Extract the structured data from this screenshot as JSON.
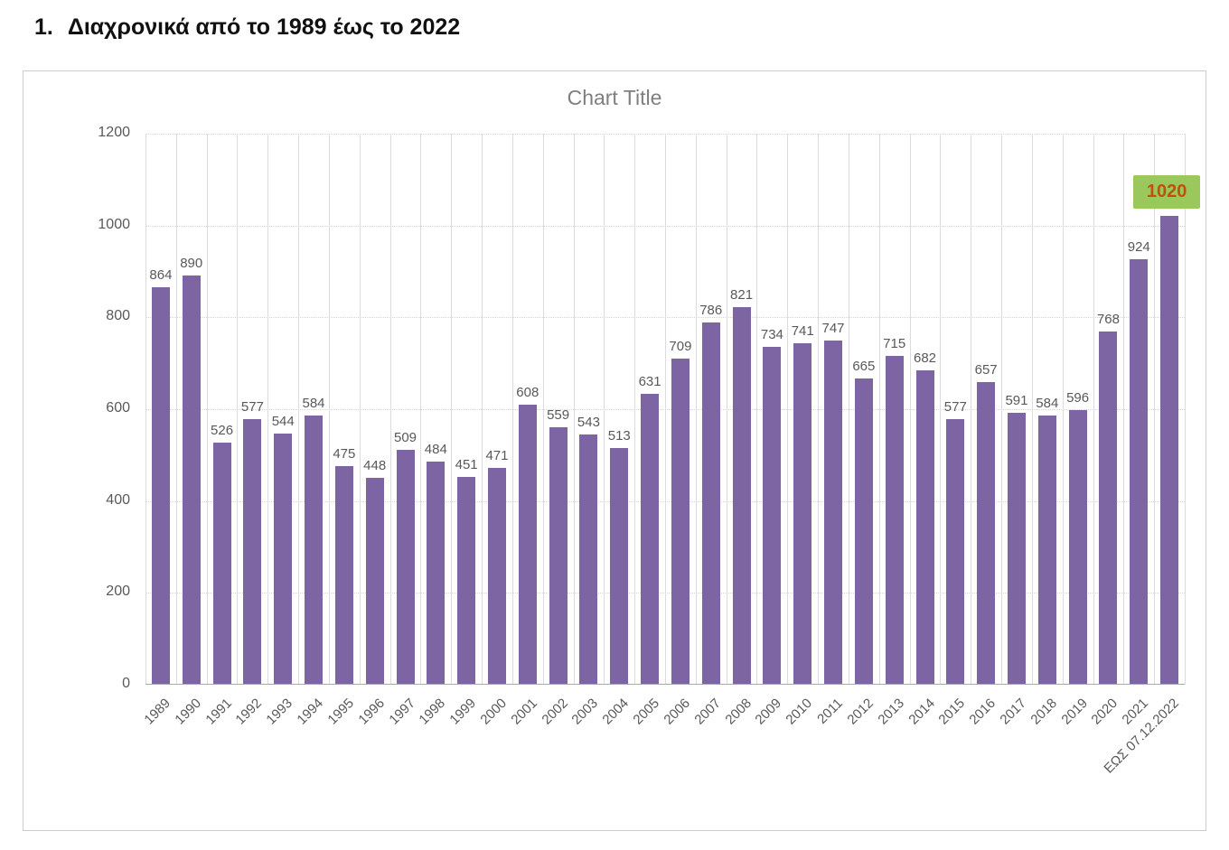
{
  "page": {
    "heading_number": "1.",
    "heading_text": "Διαχρονικά από το 1989 έως το 2022"
  },
  "chart": {
    "title": "Chart Title",
    "colors": {
      "bar": "#7d64a2",
      "grid_h": "#d4d4d4",
      "grid_v": "#dcdcdc",
      "axis": "#a9a9a9",
      "tick_label": "#595959",
      "value_label": "#595959",
      "title": "#7f7f7f",
      "figure_border": "#cccccc",
      "highlight_bg": "#9bc85c",
      "highlight_text": "#c1510a"
    }
  },
  "chart_data": {
    "type": "bar",
    "title": "Chart Title",
    "categories": [
      "1989",
      "1990",
      "1991",
      "1992",
      "1993",
      "1994",
      "1995",
      "1996",
      "1997",
      "1998",
      "1999",
      "2000",
      "2001",
      "2002",
      "2003",
      "2004",
      "2005",
      "2006",
      "2007",
      "2008",
      "2009",
      "2010",
      "2011",
      "2012",
      "2013",
      "2014",
      "2015",
      "2016",
      "2017",
      "2018",
      "2019",
      "2020",
      "2021",
      "ΕΩΣ 07.12.2022"
    ],
    "values": [
      864,
      890,
      526,
      577,
      544,
      584,
      475,
      448,
      509,
      484,
      451,
      471,
      608,
      559,
      543,
      513,
      631,
      709,
      786,
      821,
      734,
      741,
      747,
      665,
      715,
      682,
      577,
      657,
      591,
      584,
      596,
      768,
      924,
      1020
    ],
    "highlight_category": "ΕΩΣ 07.12.2022",
    "highlight_value": 1020,
    "xlabel": "",
    "ylabel": "",
    "ylim": [
      0,
      1200
    ],
    "yticks": [
      0,
      200,
      400,
      600,
      800,
      1000,
      1200
    ],
    "grid": true,
    "legend": false,
    "bar_color": "#7d64a2"
  }
}
